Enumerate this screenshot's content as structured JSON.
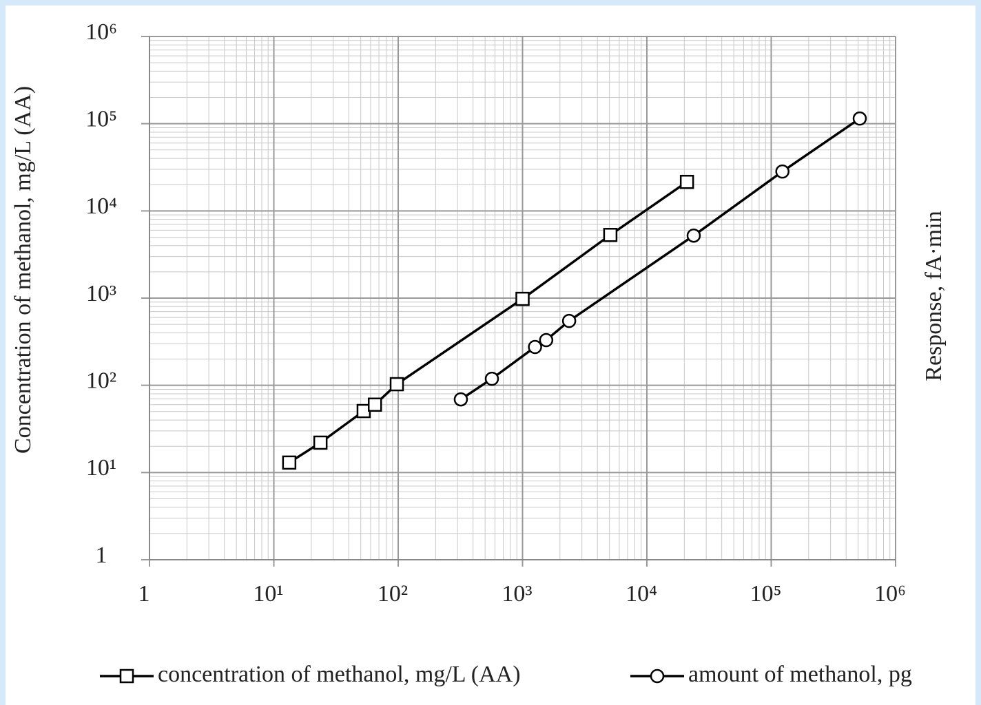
{
  "chart_data": {
    "type": "line",
    "y_label": "Concentration of methanol, mg/L (AA)",
    "y2_label": "Response, fA·min",
    "log_x": true,
    "log_y": true,
    "grid": true,
    "minor_grid": true,
    "xlim": [
      1,
      1000000
    ],
    "xticks": [
      1,
      {
        "value": 10,
        "label": "10¹"
      },
      {
        "value": 100,
        "label": "10²"
      },
      {
        "value": 1000,
        "label": "10³"
      },
      {
        "value": 10000,
        "label": "10⁴"
      },
      {
        "value": 100000,
        "label": "10⁵"
      },
      {
        "value": 1000000,
        "label": "10⁶"
      }
    ],
    "ylim": [
      1,
      1000000
    ],
    "yticks": [
      1,
      {
        "value": 10,
        "label": "10¹"
      },
      {
        "value": 100,
        "label": "10²"
      },
      {
        "value": 1000,
        "label": "10³"
      },
      {
        "value": 10000,
        "label": "10⁴"
      },
      {
        "value": 100000,
        "label": "10⁵"
      },
      {
        "value": 1000000,
        "label": "10⁶"
      }
    ],
    "legend": "bottom",
    "series": [
      {
        "name": "concentration of methanol, mg/L (AA)",
        "color": "#000000",
        "marker": "square",
        "x": [
          13.3,
          23.7,
          52.8,
          65,
          97.5,
          1000,
          5080,
          21000
        ],
        "values": [
          13,
          22,
          50.7,
          60,
          103,
          980,
          5300,
          21500
        ]
      },
      {
        "name": "amount of methanol, pg",
        "color": "#000000",
        "marker": "circle",
        "x": [
          319,
          567,
          1260,
          1550,
          2370,
          23800,
          123000,
          515000
        ],
        "values": [
          69,
          119,
          275,
          330,
          548,
          5210,
          28300,
          114600
        ]
      }
    ]
  }
}
